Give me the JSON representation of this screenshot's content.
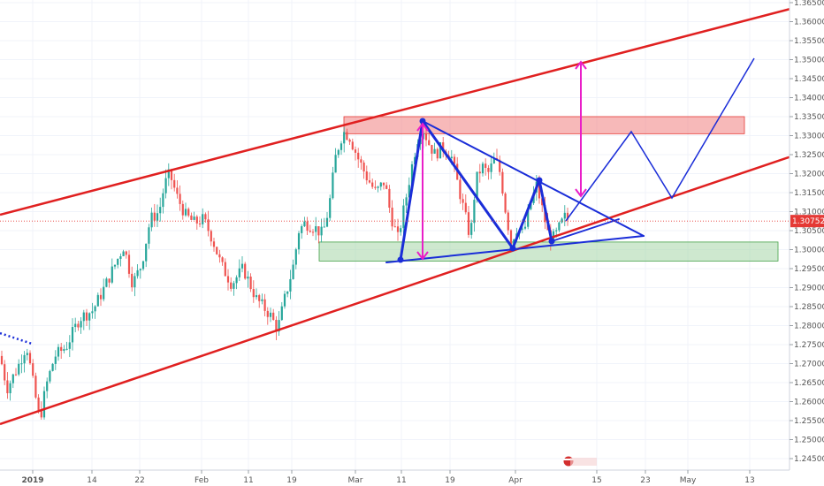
{
  "chart_data": {
    "type": "candlestick",
    "y_axis": {
      "ticks": [
        "1.24500",
        "1.25000",
        "1.25500",
        "1.26000",
        "1.26500",
        "1.27000",
        "1.27500",
        "1.28000",
        "1.28500",
        "1.29000",
        "1.29500",
        "1.30000",
        "1.30500",
        "1.31000",
        "1.31500",
        "1.32000",
        "1.32500",
        "1.33000",
        "1.33500",
        "1.34000",
        "1.34500",
        "1.35000",
        "1.35500",
        "1.36000",
        "1.36500"
      ],
      "min": 1.2425,
      "max": 1.3665,
      "position": "right"
    },
    "x_axis": {
      "labels": [
        "2019",
        "14",
        "22",
        "Feb",
        "11",
        "19",
        "Mar",
        "11",
        "19",
        "Apr",
        "15",
        "23",
        "May",
        "13"
      ],
      "bold_labels": [
        "2019"
      ]
    },
    "current_price": {
      "value": 1.30752,
      "label": "1.30752",
      "color": "#e53935"
    },
    "colors": {
      "up_candle": "#26a69a",
      "down_candle": "#ef5350",
      "channel": "#e02020",
      "pattern": "#1a2dd8",
      "arrow": "#e91ec8",
      "resistance_zone": "#f08080",
      "support_zone": "#a5d6a7"
    },
    "zones": [
      {
        "type": "resistance",
        "y_from": 1.3305,
        "y_to": 1.335
      },
      {
        "type": "support",
        "y_from": 1.297,
        "y_to": 1.302
      }
    ],
    "annotations": {
      "channel": "rising",
      "pattern": "triangle",
      "projection": "zigzag"
    }
  }
}
